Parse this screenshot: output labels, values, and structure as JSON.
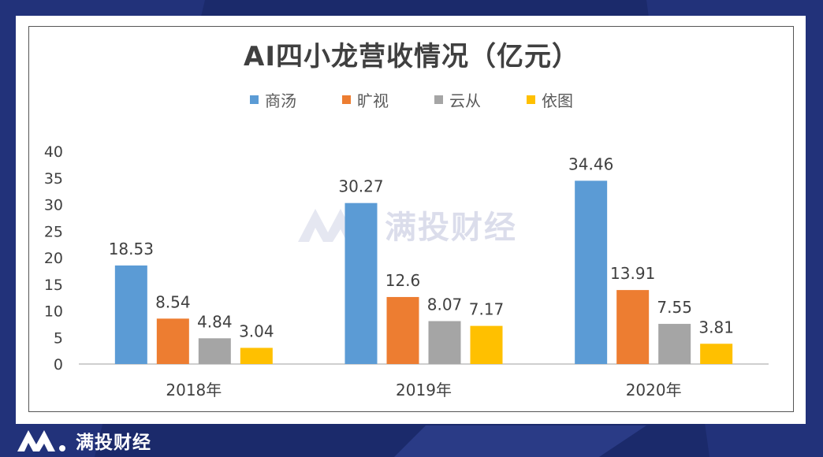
{
  "brand": {
    "name": "满投财经",
    "colors": {
      "background": "#1b2a6b",
      "footer_text": "#ffffff"
    }
  },
  "chart_data": {
    "type": "bar",
    "title": "AI四小龙营收情况（亿元）",
    "categories": [
      "2018年",
      "2019年",
      "2020年"
    ],
    "series": [
      {
        "name": "商汤",
        "color": "#5b9bd5",
        "values": [
          18.53,
          30.27,
          34.46
        ],
        "labels": [
          "18.53",
          "30.27",
          "34.46"
        ]
      },
      {
        "name": "旷视",
        "color": "#ed7d31",
        "values": [
          8.54,
          12.6,
          13.91
        ],
        "labels": [
          "8.54",
          "12.6",
          "13.91"
        ]
      },
      {
        "name": "云从",
        "color": "#a5a5a5",
        "values": [
          4.84,
          8.07,
          7.55
        ],
        "labels": [
          "4.84",
          "8.07",
          "7.55"
        ]
      },
      {
        "name": "依图",
        "color": "#ffc000",
        "values": [
          3.04,
          7.17,
          3.81
        ],
        "labels": [
          "3.04",
          "7.17",
          "3.81"
        ]
      }
    ],
    "ylim": [
      0,
      40
    ],
    "yticks": [
      "0",
      "5",
      "10",
      "15",
      "20",
      "25",
      "30",
      "35",
      "40"
    ],
    "grid": false,
    "legend": "top-center"
  }
}
